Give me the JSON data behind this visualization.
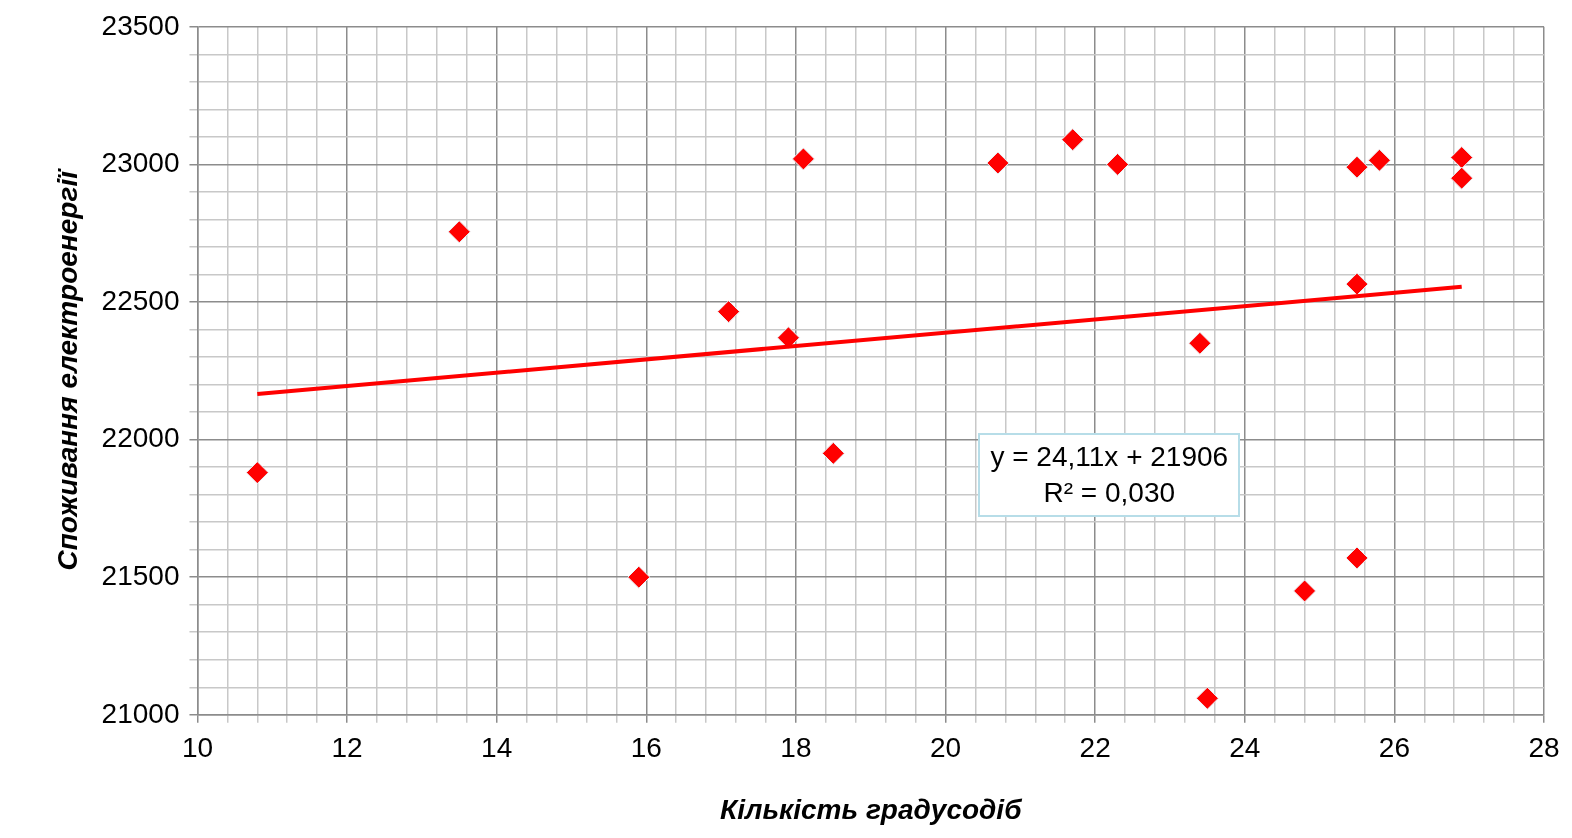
{
  "chart_data": {
    "type": "scatter",
    "xlabel": "Кількість градусодіб",
    "ylabel": "Споживання електроенергії",
    "xlim": [
      10,
      28
    ],
    "ylim": [
      21000,
      23500
    ],
    "xticks": [
      10,
      {
        "value": 10.4,
        "label": null
      },
      {
        "value": 10.8,
        "label": null
      },
      {
        "value": 11.2,
        "label": null
      },
      {
        "value": 11.6,
        "label": null
      },
      12,
      {
        "value": 12.4,
        "label": null
      },
      {
        "value": 12.8,
        "label": null
      },
      {
        "value": 13.2,
        "label": null
      },
      {
        "value": 13.6,
        "label": null
      },
      14,
      {
        "value": 14.4,
        "label": null
      },
      {
        "value": 14.8,
        "label": null
      },
      {
        "value": 15.2,
        "label": null
      },
      {
        "value": 15.6,
        "label": null
      },
      16,
      {
        "value": 16.4,
        "label": null
      },
      {
        "value": 16.8,
        "label": null
      },
      {
        "value": 17.2,
        "label": null
      },
      {
        "value": 17.6,
        "label": null
      },
      18,
      {
        "value": 18.4,
        "label": null
      },
      {
        "value": 18.8,
        "label": null
      },
      {
        "value": 19.2,
        "label": null
      },
      {
        "value": 19.6,
        "label": null
      },
      20,
      {
        "value": 20.4,
        "label": null
      },
      {
        "value": 20.8,
        "label": null
      },
      {
        "value": 21.2,
        "label": null
      },
      {
        "value": 21.6,
        "label": null
      },
      22,
      {
        "value": 22.4,
        "label": null
      },
      {
        "value": 22.8,
        "label": null
      },
      {
        "value": 23.2,
        "label": null
      },
      {
        "value": 23.6,
        "label": null
      },
      24,
      {
        "value": 24.4,
        "label": null
      },
      {
        "value": 24.8,
        "label": null
      },
      {
        "value": 25.2,
        "label": null
      },
      {
        "value": 25.6,
        "label": null
      },
      26,
      {
        "value": 26.4,
        "label": null
      },
      {
        "value": 26.8,
        "label": null
      },
      {
        "value": 27.2,
        "label": null
      },
      {
        "value": 27.6,
        "label": null
      },
      28
    ],
    "yticks": [
      21000,
      {
        "value": 21100,
        "label": null
      },
      {
        "value": 21200,
        "label": null
      },
      {
        "value": 21300,
        "label": null
      },
      {
        "value": 21400,
        "label": null
      },
      21500,
      {
        "value": 21600,
        "label": null
      },
      {
        "value": 21700,
        "label": null
      },
      {
        "value": 21800,
        "label": null
      },
      {
        "value": 21900,
        "label": null
      },
      22000,
      {
        "value": 22100,
        "label": null
      },
      {
        "value": 22200,
        "label": null
      },
      {
        "value": 22300,
        "label": null
      },
      {
        "value": 22400,
        "label": null
      },
      22500,
      {
        "value": 22600,
        "label": null
      },
      {
        "value": 22700,
        "label": null
      },
      {
        "value": 22800,
        "label": null
      },
      {
        "value": 22900,
        "label": null
      },
      23000,
      {
        "value": 23100,
        "label": null
      },
      {
        "value": 23200,
        "label": null
      },
      {
        "value": 23300,
        "label": null
      },
      {
        "value": 23400,
        "label": null
      },
      23500
    ],
    "grid": true,
    "series": [
      {
        "color": "#ff0000",
        "marker": "diamond",
        "x": [
          10.8,
          13.5,
          15.9,
          17.1,
          17.9,
          18.1,
          18.5,
          20.7,
          21.7,
          22.3,
          23.4,
          23.5,
          24.8,
          25.5,
          25.5,
          25.5,
          25.8,
          26.9,
          26.9
        ],
        "values": [
          21880,
          22755,
          21500,
          22465,
          22370,
          23020,
          21950,
          23005,
          23090,
          23000,
          22350,
          21060,
          21450,
          22990,
          22565,
          21570,
          23015,
          23025,
          22950
        ]
      },
      {
        "type": "line",
        "color": "#ff0000",
        "x": [
          10.8,
          26.9
        ],
        "values": [
          22166,
          22555
        ]
      }
    ],
    "annotations": [
      "y = 24,11x + 21906",
      "R² = 0,030"
    ]
  }
}
